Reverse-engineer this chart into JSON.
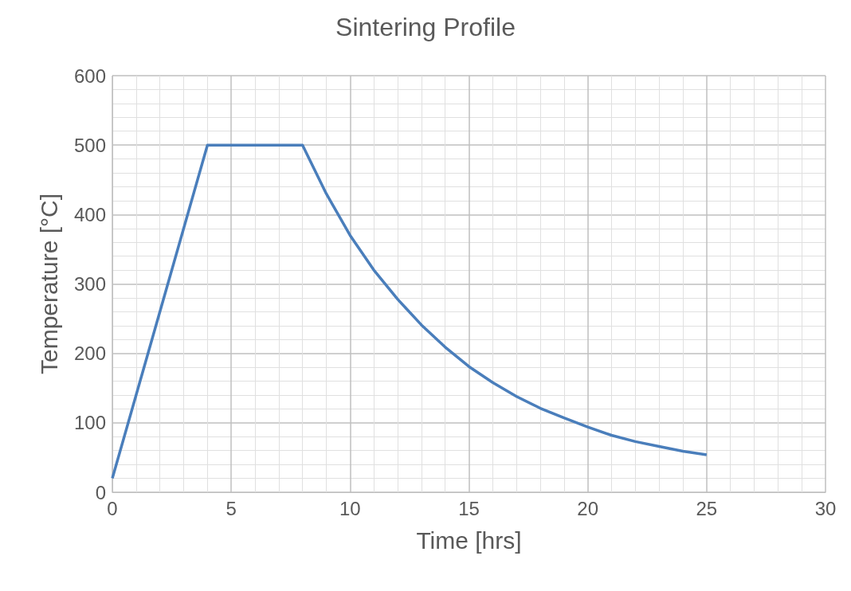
{
  "chart_data": {
    "type": "line",
    "title": "Sintering Profile",
    "xlabel": "Time [hrs]",
    "ylabel": "Temperature [°C]",
    "x": [
      0,
      4,
      8,
      9,
      10,
      11,
      12,
      13,
      14,
      15,
      16,
      17,
      18,
      19,
      20,
      21,
      22,
      23,
      24,
      25
    ],
    "series": [
      {
        "color": "#4a7ebb",
        "values": [
          20,
          500,
          500,
          430,
          370,
          320,
          278,
          241,
          209,
          181,
          158,
          138,
          121,
          107,
          94,
          82,
          73,
          66,
          59,
          54
        ]
      }
    ],
    "xlim": [
      0,
      30
    ],
    "xticks": [
      0,
      5,
      10,
      15,
      20,
      25,
      30
    ],
    "ylim": [
      0,
      600
    ],
    "yticks": [
      0,
      100,
      200,
      300,
      400,
      500,
      600
    ],
    "grid": true,
    "marker": "none",
    "line_style": "solid"
  }
}
